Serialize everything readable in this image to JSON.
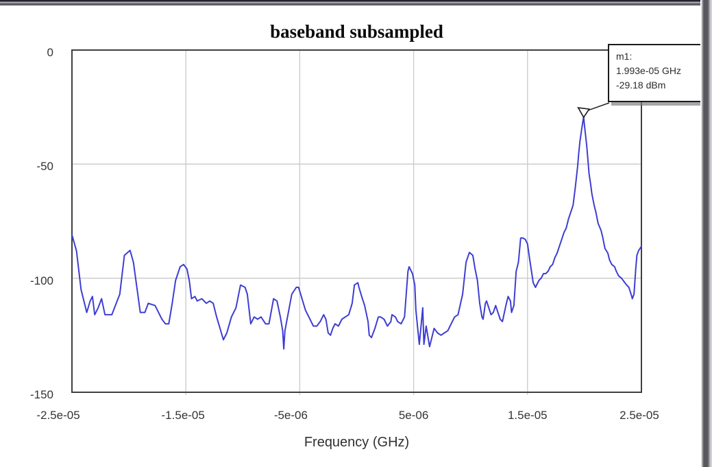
{
  "colors": {
    "trace": "#3d3dd2",
    "grid": "#c9c9c9",
    "frame": "#3f3f3f",
    "marker_border": "#1a1a1a",
    "text": "#333333"
  },
  "chart_data": {
    "type": "line",
    "title": "baseband subsampled",
    "xlabel": "Frequency (GHz)",
    "ylabel": "",
    "x_unit": "1e-6 GHz",
    "y_unit": "dBm",
    "xlim": [
      -25,
      25
    ],
    "ylim": [
      -150,
      0
    ],
    "grid": true,
    "legend": "none",
    "xticks": [
      {
        "value": -25,
        "label": "-2.5e-05"
      },
      {
        "value": -15,
        "label": "-1.5e-05"
      },
      {
        "value": -5,
        "label": "-5e-06"
      },
      {
        "value": 5,
        "label": "5e-06"
      },
      {
        "value": 15,
        "label": "1.5e-05"
      },
      {
        "value": 25,
        "label": "2.5e-05"
      }
    ],
    "yticks": [
      {
        "value": 0,
        "label": "0"
      },
      {
        "value": -50,
        "label": "-50"
      },
      {
        "value": -100,
        "label": "-100"
      },
      {
        "value": -150,
        "label": "-150"
      }
    ],
    "marker": {
      "label": "m1:",
      "freq_text": "1.993e-05 GHz",
      "value_text": "-29.18 dBm",
      "x": 19.93,
      "y": -29.18
    },
    "series": [
      {
        "color": "#3d3dd2",
        "points": [
          [
            -25,
            -81
          ],
          [
            -24.6,
            -88
          ],
          [
            -24.2,
            -105
          ],
          [
            -23.7,
            -115
          ],
          [
            -23.4,
            -110
          ],
          [
            -23.2,
            -108
          ],
          [
            -23,
            -116
          ],
          [
            -22.7,
            -113
          ],
          [
            -22.4,
            -109
          ],
          [
            -22.1,
            -116
          ],
          [
            -21.5,
            -116
          ],
          [
            -20.8,
            -107
          ],
          [
            -20.4,
            -90
          ],
          [
            -19.9,
            -87.8
          ],
          [
            -19.6,
            -93
          ],
          [
            -19.3,
            -104
          ],
          [
            -19,
            -115
          ],
          [
            -18.6,
            -115
          ],
          [
            -18.3,
            -111
          ],
          [
            -17.7,
            -112
          ],
          [
            -17.4,
            -115
          ],
          [
            -17.1,
            -118
          ],
          [
            -16.8,
            -120
          ],
          [
            -16.5,
            -120
          ],
          [
            -16.2,
            -111
          ],
          [
            -15.9,
            -101
          ],
          [
            -15.5,
            -95
          ],
          [
            -15.2,
            -94
          ],
          [
            -14.9,
            -96
          ],
          [
            -14.7,
            -101
          ],
          [
            -14.5,
            -109
          ],
          [
            -14.2,
            -108
          ],
          [
            -14,
            -110
          ],
          [
            -13.6,
            -109
          ],
          [
            -13.2,
            -111
          ],
          [
            -12.9,
            -110
          ],
          [
            -12.6,
            -111
          ],
          [
            -12.3,
            -117
          ],
          [
            -12,
            -122
          ],
          [
            -11.7,
            -127
          ],
          [
            -11.4,
            -124
          ],
          [
            -11,
            -117
          ],
          [
            -10.6,
            -113
          ],
          [
            -10.2,
            -103
          ],
          [
            -9.8,
            -104
          ],
          [
            -9.6,
            -107
          ],
          [
            -9.3,
            -120
          ],
          [
            -9,
            -117
          ],
          [
            -8.7,
            -118
          ],
          [
            -8.4,
            -117
          ],
          [
            -8,
            -120
          ],
          [
            -7.7,
            -120
          ],
          [
            -7.3,
            -109
          ],
          [
            -7,
            -110
          ],
          [
            -6.7,
            -117
          ],
          [
            -6.5,
            -123
          ],
          [
            -6.4,
            -131
          ],
          [
            -6.3,
            -123
          ],
          [
            -6,
            -115
          ],
          [
            -5.7,
            -107
          ],
          [
            -5.3,
            -104
          ],
          [
            -5.1,
            -104
          ],
          [
            -4.8,
            -109
          ],
          [
            -4.5,
            -114
          ],
          [
            -4.2,
            -117
          ],
          [
            -3.8,
            -121
          ],
          [
            -3.5,
            -121
          ],
          [
            -3.2,
            -119
          ],
          [
            -2.9,
            -116
          ],
          [
            -2.7,
            -118
          ],
          [
            -2.5,
            -124
          ],
          [
            -2.3,
            -125
          ],
          [
            -2.1,
            -122
          ],
          [
            -1.9,
            -120
          ],
          [
            -1.6,
            -121
          ],
          [
            -1.3,
            -118
          ],
          [
            -1,
            -117
          ],
          [
            -0.7,
            -116
          ],
          [
            -0.4,
            -111
          ],
          [
            -0.2,
            -103
          ],
          [
            0.1,
            -102
          ],
          [
            0.2,
            -104
          ],
          [
            0.5,
            -109
          ],
          [
            0.7,
            -112
          ],
          [
            1,
            -119
          ],
          [
            1.1,
            -125
          ],
          [
            1.3,
            -126
          ],
          [
            1.6,
            -122
          ],
          [
            1.9,
            -117
          ],
          [
            2.1,
            -117
          ],
          [
            2.4,
            -118
          ],
          [
            2.7,
            -121
          ],
          [
            3,
            -119
          ],
          [
            3.1,
            -116
          ],
          [
            3.4,
            -117
          ],
          [
            3.6,
            -119
          ],
          [
            3.9,
            -120
          ],
          [
            4.2,
            -117
          ],
          [
            4.5,
            -97
          ],
          [
            4.6,
            -95
          ],
          [
            4.9,
            -98
          ],
          [
            5.1,
            -103
          ],
          [
            5.2,
            -114
          ],
          [
            5.4,
            -124
          ],
          [
            5.5,
            -129
          ],
          [
            5.8,
            -113
          ],
          [
            5.9,
            -129
          ],
          [
            6.1,
            -121
          ],
          [
            6.4,
            -130
          ],
          [
            6.8,
            -122
          ],
          [
            7.1,
            -124
          ],
          [
            7.4,
            -125
          ],
          [
            7.7,
            -124
          ],
          [
            8,
            -123
          ],
          [
            8.3,
            -120
          ],
          [
            8.6,
            -117
          ],
          [
            8.9,
            -116
          ],
          [
            9.3,
            -107
          ],
          [
            9.6,
            -93
          ],
          [
            9.9,
            -88.7
          ],
          [
            10.2,
            -90
          ],
          [
            10.4,
            -96
          ],
          [
            10.6,
            -101
          ],
          [
            10.8,
            -111
          ],
          [
            11,
            -117
          ],
          [
            11.1,
            -118
          ],
          [
            11.3,
            -111
          ],
          [
            11.4,
            -110
          ],
          [
            11.6,
            -113
          ],
          [
            11.8,
            -116
          ],
          [
            12,
            -115
          ],
          [
            12.2,
            -112
          ],
          [
            12.4,
            -115
          ],
          [
            12.6,
            -118
          ],
          [
            12.8,
            -119
          ],
          [
            13.1,
            -112
          ],
          [
            13.3,
            -108
          ],
          [
            13.5,
            -110
          ],
          [
            13.6,
            -115
          ],
          [
            13.8,
            -112
          ],
          [
            14,
            -97
          ],
          [
            14.2,
            -93
          ],
          [
            14.4,
            -82.4
          ],
          [
            14.6,
            -82.4
          ],
          [
            14.8,
            -83
          ],
          [
            15,
            -85
          ],
          [
            15.2,
            -92
          ],
          [
            15.5,
            -102
          ],
          [
            15.7,
            -104
          ],
          [
            16,
            -101
          ],
          [
            16.2,
            -100
          ],
          [
            16.4,
            -98
          ],
          [
            16.6,
            -98
          ],
          [
            16.8,
            -97
          ],
          [
            17,
            -95
          ],
          [
            17.2,
            -94
          ],
          [
            17.4,
            -91
          ],
          [
            17.6,
            -89
          ],
          [
            17.8,
            -86
          ],
          [
            18,
            -83
          ],
          [
            18.2,
            -80
          ],
          [
            18.4,
            -78
          ],
          [
            18.6,
            -74
          ],
          [
            18.8,
            -71
          ],
          [
            19,
            -68
          ],
          [
            19.2,
            -60
          ],
          [
            19.4,
            -51
          ],
          [
            19.5,
            -45
          ],
          [
            19.6,
            -40
          ],
          [
            19.75,
            -35
          ],
          [
            19.93,
            -29.18
          ],
          [
            20,
            -33
          ],
          [
            20.2,
            -42
          ],
          [
            20.3,
            -48
          ],
          [
            20.4,
            -54
          ],
          [
            20.55,
            -59
          ],
          [
            20.65,
            -63
          ],
          [
            20.85,
            -68
          ],
          [
            21,
            -71
          ],
          [
            21.2,
            -76
          ],
          [
            21.45,
            -79
          ],
          [
            21.6,
            -82
          ],
          [
            21.8,
            -87
          ],
          [
            22.05,
            -89
          ],
          [
            22.2,
            -92
          ],
          [
            22.4,
            -94
          ],
          [
            22.65,
            -95
          ],
          [
            22.8,
            -97
          ],
          [
            23,
            -99
          ],
          [
            23.25,
            -100
          ],
          [
            23.4,
            -101
          ],
          [
            23.7,
            -103
          ],
          [
            23.9,
            -104
          ],
          [
            24.15,
            -108
          ],
          [
            24.2,
            -109
          ],
          [
            24.35,
            -107
          ],
          [
            24.5,
            -96
          ],
          [
            24.6,
            -90
          ],
          [
            24.75,
            -88
          ],
          [
            25,
            -86
          ]
        ]
      }
    ]
  }
}
